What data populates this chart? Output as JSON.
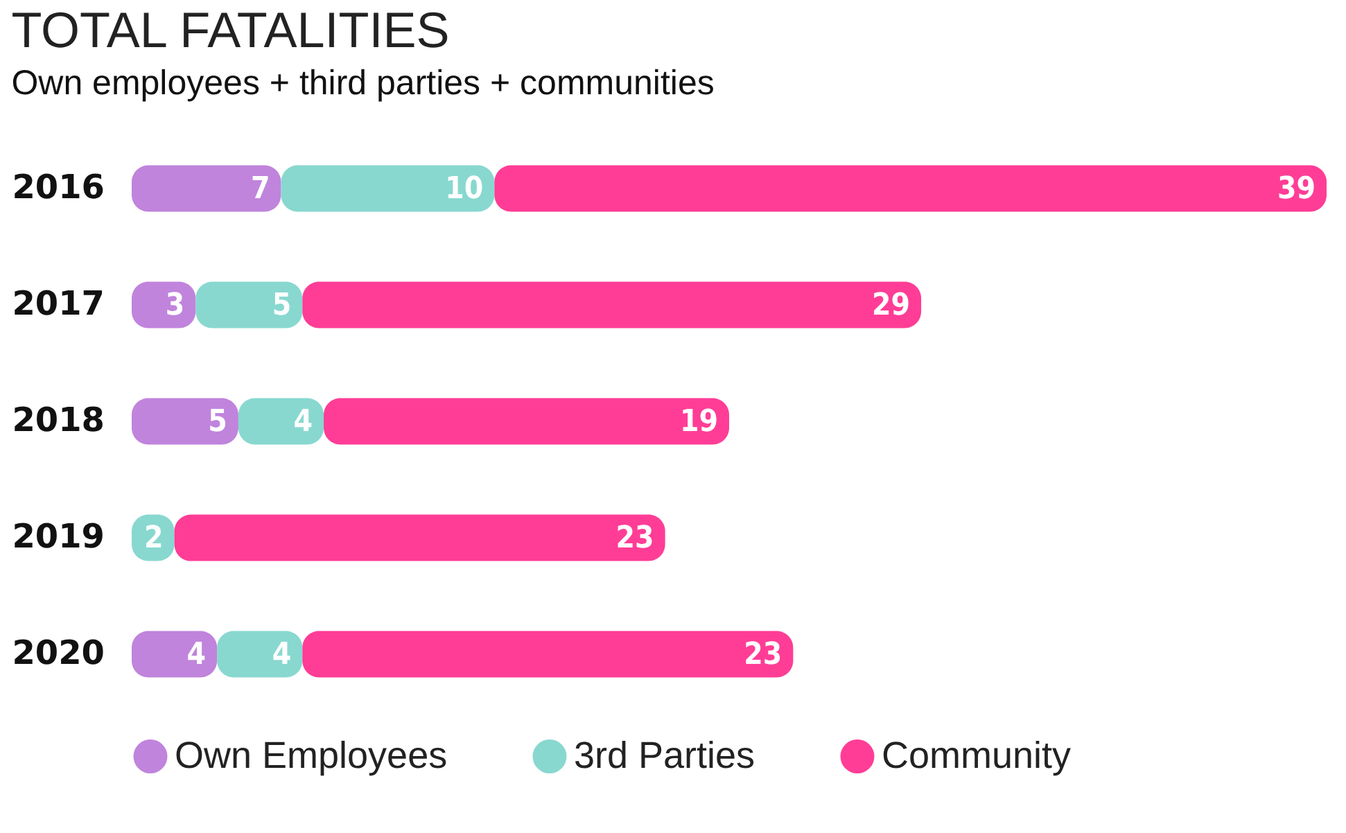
{
  "chart_data": {
    "type": "bar",
    "orientation": "horizontal",
    "stacked": true,
    "title": "TOTAL FATALITIES",
    "subtitle": "Own employees + third parties + communities",
    "categories": [
      "2016",
      "2017",
      "2018",
      "2019",
      "2020"
    ],
    "legend": "bottom",
    "grid": false,
    "series": [
      {
        "name": "Own Employees",
        "color": "#c084dc",
        "values": [
          7,
          3,
          5,
          null,
          4
        ],
        "value_labels": [
          "7",
          "3",
          "5",
          null,
          "4"
        ]
      },
      {
        "name": "3rd Parties",
        "color": "#88d8d0",
        "values": [
          10,
          5,
          4,
          2,
          4
        ],
        "value_labels": [
          "10",
          "5",
          "4",
          "2",
          "4"
        ]
      },
      {
        "name": "Community",
        "color": "#ff3d96",
        "values": [
          39,
          29,
          19,
          23,
          23
        ],
        "value_labels": [
          "39",
          "29",
          "19",
          "23",
          "23"
        ]
      }
    ]
  }
}
